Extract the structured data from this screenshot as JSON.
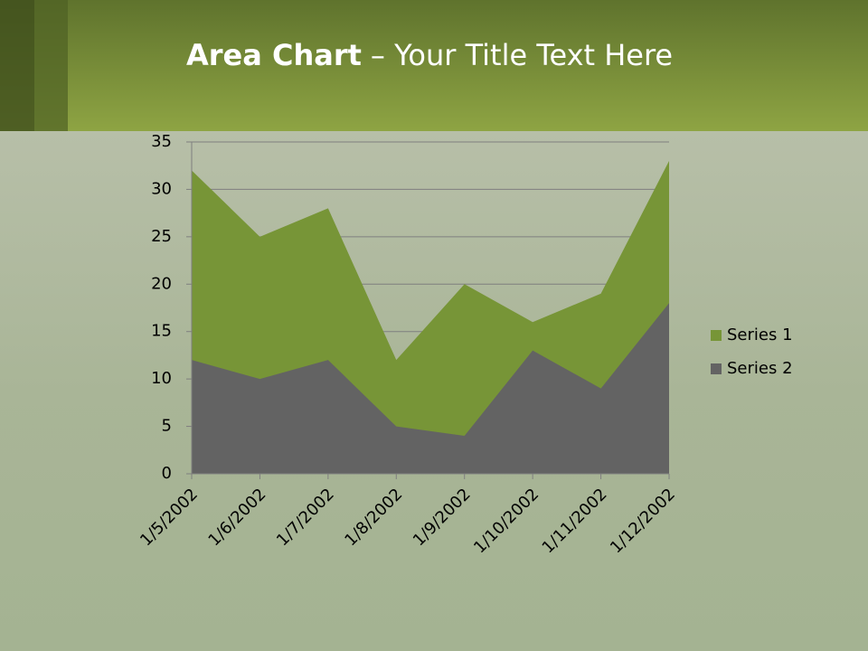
{
  "chart_data": {
    "type": "area",
    "title": [
      "Area Chart",
      "– Your Title Text Here"
    ],
    "categories": [
      "1/5/2002",
      "1/6/2002",
      "1/7/2002",
      "1/8/2002",
      "1/9/2002",
      "1/10/2002",
      "1/11/2002",
      "1/12/2002"
    ],
    "series": [
      {
        "name": "Series 1",
        "color": "#779537",
        "values": [
          32,
          25,
          28,
          12,
          20,
          16,
          19,
          33
        ]
      },
      {
        "name": "Series 2",
        "color": "#636363",
        "values": [
          12,
          10,
          12,
          5,
          4,
          13,
          9,
          18
        ]
      }
    ],
    "ylim": [
      0,
      35
    ],
    "yticks": [
      0,
      5,
      10,
      15,
      20,
      25,
      30,
      35
    ],
    "grid": true,
    "legend": "right"
  }
}
